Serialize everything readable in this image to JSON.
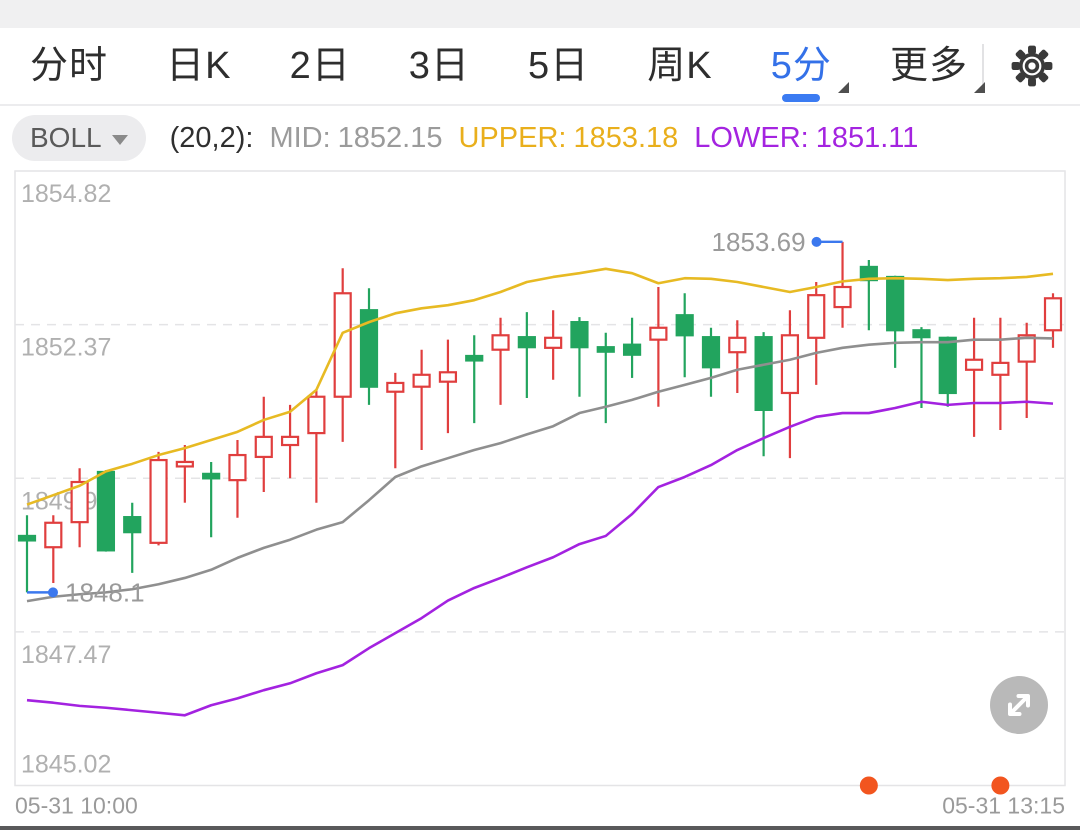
{
  "header": {
    "tabs": [
      {
        "id": "timeline",
        "label": "分时",
        "active": false,
        "caret": false
      },
      {
        "id": "day-k",
        "label": "日K",
        "active": false,
        "caret": false
      },
      {
        "id": "2day",
        "label": "2日",
        "active": false,
        "caret": false
      },
      {
        "id": "3day",
        "label": "3日",
        "active": false,
        "caret": false
      },
      {
        "id": "5day",
        "label": "5日",
        "active": false,
        "caret": false
      },
      {
        "id": "week-k",
        "label": "周K",
        "active": false,
        "caret": false
      },
      {
        "id": "5min",
        "label": "5分",
        "active": true,
        "caret": true
      },
      {
        "id": "more",
        "label": "更多",
        "active": false,
        "caret": true
      }
    ]
  },
  "indicator": {
    "name": "BOLL",
    "params": "(20,2):",
    "mid_label": "MID:",
    "mid_value": "1852.15",
    "upper_label": "UPPER:",
    "upper_value": "1853.18",
    "lower_label": "LOWER:",
    "lower_value": "1851.11"
  },
  "colors": {
    "up": "#e03e3e",
    "down": "#22a45e",
    "band_upper": "#e7ba23",
    "band_mid": "#8f8f8f",
    "band_lower": "#a322e0",
    "accent_blue": "#3b78ee",
    "event_dot": "#f2551f",
    "grid": "#e4e4e6",
    "axis_text": "#b0b0b0",
    "marker_text": "#9a9a9a"
  },
  "chart_data": {
    "type": "candlestick",
    "interval": "5min",
    "y_axis": {
      "min": 1845.02,
      "max": 1854.82,
      "tick_prices": [
        1854.82,
        1852.37,
        1849.92,
        1847.47,
        1845.02
      ],
      "tick_labels": [
        "1854.82",
        "1852.37",
        "1849.92",
        "1847.47",
        "1845.02"
      ]
    },
    "x_axis": {
      "labels": [
        "05-31 10:00",
        "05-31 13:15"
      ]
    },
    "annotations": {
      "high": {
        "index": 31,
        "price": 1853.69,
        "label": "1853.69"
      },
      "low": {
        "index": 0,
        "price": 1848.1,
        "label": "1848.1"
      }
    },
    "event_dot_indices": [
      32,
      37
    ],
    "boll": {
      "upper": [
        1849.5,
        1849.65,
        1849.8,
        1850.03,
        1850.15,
        1850.29,
        1850.4,
        1850.53,
        1850.66,
        1850.85,
        1850.98,
        1851.33,
        1852.24,
        1852.41,
        1852.55,
        1852.63,
        1852.68,
        1852.76,
        1852.89,
        1853.05,
        1853.13,
        1853.19,
        1853.26,
        1853.19,
        1853.03,
        1853.11,
        1853.1,
        1853.05,
        1852.97,
        1852.89,
        1852.97,
        1853.06,
        1853.1,
        1853.11,
        1853.1,
        1853.08,
        1853.1,
        1853.11,
        1853.13,
        1853.18
      ],
      "mid": [
        1847.96,
        1848.03,
        1848.07,
        1848.1,
        1848.15,
        1848.23,
        1848.33,
        1848.46,
        1848.65,
        1848.81,
        1848.94,
        1849.1,
        1849.22,
        1849.57,
        1849.94,
        1850.11,
        1850.24,
        1850.37,
        1850.48,
        1850.62,
        1850.75,
        1850.96,
        1851.06,
        1851.17,
        1851.3,
        1851.41,
        1851.52,
        1851.65,
        1851.73,
        1851.81,
        1851.92,
        1852.0,
        1852.05,
        1852.08,
        1852.09,
        1852.09,
        1852.13,
        1852.13,
        1852.16,
        1852.15
      ],
      "lower": [
        1846.38,
        1846.34,
        1846.29,
        1846.26,
        1846.22,
        1846.18,
        1846.14,
        1846.3,
        1846.41,
        1846.54,
        1846.65,
        1846.81,
        1846.94,
        1847.21,
        1847.45,
        1847.69,
        1847.97,
        1848.17,
        1848.33,
        1848.5,
        1848.66,
        1848.87,
        1849.0,
        1849.35,
        1849.78,
        1849.94,
        1850.13,
        1850.37,
        1850.56,
        1850.74,
        1850.9,
        1850.96,
        1850.96,
        1851.04,
        1851.14,
        1851.09,
        1851.12,
        1851.12,
        1851.14,
        1851.11
      ]
    },
    "candles": [
      {
        "o": 1849.0,
        "c": 1848.95,
        "h": 1849.33,
        "l": 1848.1,
        "d": "down"
      },
      {
        "o": 1848.82,
        "c": 1849.21,
        "h": 1849.33,
        "l": 1848.25,
        "d": "up"
      },
      {
        "o": 1849.22,
        "c": 1849.86,
        "h": 1850.08,
        "l": 1848.82,
        "d": "up"
      },
      {
        "o": 1850.02,
        "c": 1848.77,
        "h": 1850.05,
        "l": 1848.75,
        "d": "down"
      },
      {
        "o": 1849.3,
        "c": 1849.06,
        "h": 1849.53,
        "l": 1848.41,
        "d": "down"
      },
      {
        "o": 1848.89,
        "c": 1850.21,
        "h": 1850.34,
        "l": 1848.85,
        "d": "up"
      },
      {
        "o": 1850.14,
        "c": 1850.18,
        "h": 1850.45,
        "l": 1849.53,
        "d": "up"
      },
      {
        "o": 1849.99,
        "c": 1849.95,
        "h": 1850.18,
        "l": 1848.98,
        "d": "down"
      },
      {
        "o": 1849.89,
        "c": 1850.29,
        "h": 1850.53,
        "l": 1849.29,
        "d": "up"
      },
      {
        "o": 1850.26,
        "c": 1850.58,
        "h": 1851.22,
        "l": 1849.7,
        "d": "up"
      },
      {
        "o": 1850.45,
        "c": 1850.58,
        "h": 1851.09,
        "l": 1849.92,
        "d": "up"
      },
      {
        "o": 1850.64,
        "c": 1851.22,
        "h": 1851.33,
        "l": 1849.53,
        "d": "up"
      },
      {
        "o": 1851.22,
        "c": 1852.87,
        "h": 1853.27,
        "l": 1850.5,
        "d": "up"
      },
      {
        "o": 1852.6,
        "c": 1851.38,
        "h": 1852.95,
        "l": 1851.09,
        "d": "down"
      },
      {
        "o": 1851.3,
        "c": 1851.44,
        "h": 1851.6,
        "l": 1850.08,
        "d": "up"
      },
      {
        "o": 1851.38,
        "c": 1851.57,
        "h": 1851.97,
        "l": 1850.37,
        "d": "up"
      },
      {
        "o": 1851.46,
        "c": 1851.61,
        "h": 1852.13,
        "l": 1850.64,
        "d": "up"
      },
      {
        "o": 1851.87,
        "c": 1851.84,
        "h": 1852.2,
        "l": 1850.8,
        "d": "down"
      },
      {
        "o": 1851.97,
        "c": 1852.2,
        "h": 1852.48,
        "l": 1851.09,
        "d": "up"
      },
      {
        "o": 1852.17,
        "c": 1852.01,
        "h": 1852.57,
        "l": 1851.2,
        "d": "down"
      },
      {
        "o": 1852.0,
        "c": 1852.16,
        "h": 1852.6,
        "l": 1851.49,
        "d": "up"
      },
      {
        "o": 1852.41,
        "c": 1852.01,
        "h": 1852.49,
        "l": 1851.22,
        "d": "down"
      },
      {
        "o": 1852.01,
        "c": 1851.99,
        "h": 1852.24,
        "l": 1850.8,
        "d": "down"
      },
      {
        "o": 1852.05,
        "c": 1851.89,
        "h": 1852.48,
        "l": 1851.52,
        "d": "down"
      },
      {
        "o": 1852.13,
        "c": 1852.32,
        "h": 1852.97,
        "l": 1851.06,
        "d": "up"
      },
      {
        "o": 1852.52,
        "c": 1852.2,
        "h": 1852.87,
        "l": 1851.53,
        "d": "down"
      },
      {
        "o": 1852.17,
        "c": 1851.69,
        "h": 1852.32,
        "l": 1851.22,
        "d": "down"
      },
      {
        "o": 1851.93,
        "c": 1852.16,
        "h": 1852.44,
        "l": 1851.28,
        "d": "up"
      },
      {
        "o": 1852.17,
        "c": 1851.01,
        "h": 1852.25,
        "l": 1850.27,
        "d": "down"
      },
      {
        "o": 1851.28,
        "c": 1852.2,
        "h": 1852.6,
        "l": 1850.24,
        "d": "up"
      },
      {
        "o": 1852.16,
        "c": 1852.84,
        "h": 1853.05,
        "l": 1851.41,
        "d": "up"
      },
      {
        "o": 1852.65,
        "c": 1852.97,
        "h": 1853.69,
        "l": 1852.32,
        "d": "up"
      },
      {
        "o": 1853.29,
        "c": 1853.08,
        "h": 1853.4,
        "l": 1852.28,
        "d": "down"
      },
      {
        "o": 1853.13,
        "c": 1852.28,
        "h": 1853.15,
        "l": 1851.68,
        "d": "down"
      },
      {
        "o": 1852.28,
        "c": 1852.17,
        "h": 1852.33,
        "l": 1851.04,
        "d": "down"
      },
      {
        "o": 1852.16,
        "c": 1851.28,
        "h": 1852.18,
        "l": 1851.06,
        "d": "down"
      },
      {
        "o": 1851.65,
        "c": 1851.81,
        "h": 1852.48,
        "l": 1850.58,
        "d": "up"
      },
      {
        "o": 1851.57,
        "c": 1851.76,
        "h": 1852.48,
        "l": 1850.69,
        "d": "up"
      },
      {
        "o": 1851.78,
        "c": 1852.2,
        "h": 1852.4,
        "l": 1850.88,
        "d": "up"
      },
      {
        "o": 1852.28,
        "c": 1852.79,
        "h": 1852.87,
        "l": 1852.0,
        "d": "up"
      }
    ]
  }
}
